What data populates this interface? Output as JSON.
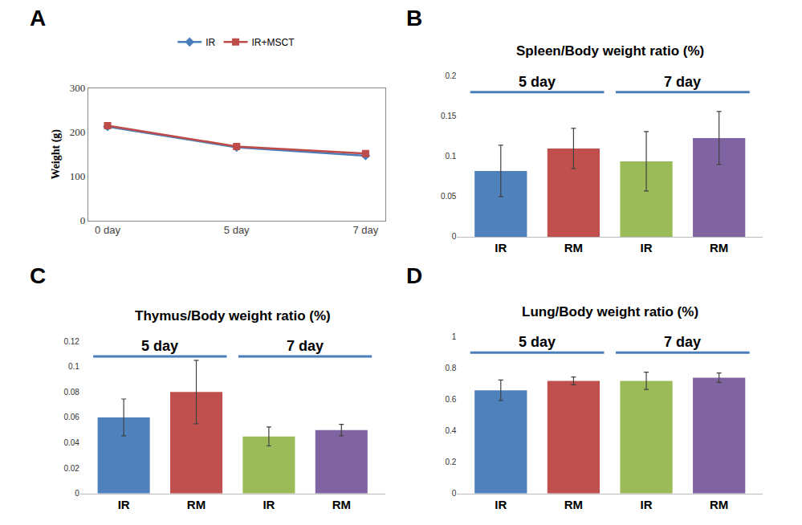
{
  "chart_data": [
    {
      "label": "A",
      "type": "line",
      "categories": [
        "0 day",
        "5 day",
        "7 day"
      ],
      "series": [
        {
          "name": "IR",
          "color": "#4a7ebb",
          "marker": "diamond",
          "values": [
            213,
            166,
            147
          ]
        },
        {
          "name": "IR+MSCT",
          "color": "#be4b48",
          "marker": "square",
          "values": [
            215,
            168,
            152
          ]
        }
      ],
      "y_label": "Weight (g)",
      "ylim": [
        0,
        300
      ],
      "yticks": [
        0,
        100,
        200,
        300
      ],
      "legend": "top",
      "grid": false
    },
    {
      "label": "B",
      "type": "bar",
      "title": "Spleen/Body weight ratio (%)",
      "categories": [
        "IR",
        "RM",
        "IR",
        "RM"
      ],
      "values": [
        0.082,
        0.11,
        0.094,
        0.123
      ],
      "errors": [
        0.032,
        0.025,
        0.037,
        0.033
      ],
      "colors": [
        "#4f81bd",
        "#c0504d",
        "#9bbb59",
        "#8064a2"
      ],
      "groups": [
        {
          "label": "5 day",
          "categories": [
            0,
            1
          ]
        },
        {
          "label": "7 day",
          "categories": [
            2,
            3
          ]
        }
      ],
      "ylim": [
        0,
        0.2
      ],
      "yticks": [
        0,
        0.05,
        0.1,
        0.15,
        0.2
      ],
      "grid": false
    },
    {
      "label": "C",
      "type": "bar",
      "title": "Thymus/Body weight ratio (%)",
      "categories": [
        "IR",
        "RM",
        "IR",
        "RM"
      ],
      "values": [
        0.06,
        0.08,
        0.045,
        0.05
      ],
      "errors": [
        0.0145,
        0.025,
        0.0075,
        0.0045
      ],
      "colors": [
        "#4f81bd",
        "#c0504d",
        "#9bbb59",
        "#8064a2"
      ],
      "groups": [
        {
          "label": "5 day",
          "categories": [
            0,
            1
          ]
        },
        {
          "label": "7 day",
          "categories": [
            2,
            3
          ]
        }
      ],
      "ylim": [
        0,
        0.12
      ],
      "yticks": [
        0,
        0.02,
        0.04,
        0.06,
        0.08,
        0.1,
        0.12
      ],
      "grid": false
    },
    {
      "label": "D",
      "type": "bar",
      "title": "Lung/Body weight ratio (%)",
      "categories": [
        "IR",
        "RM",
        "IR",
        "RM"
      ],
      "values": [
        0.66,
        0.72,
        0.72,
        0.74
      ],
      "errors": [
        0.065,
        0.025,
        0.055,
        0.03
      ],
      "colors": [
        "#4f81bd",
        "#c0504d",
        "#9bbb59",
        "#8064a2"
      ],
      "groups": [
        {
          "label": "5 day",
          "categories": [
            0,
            1
          ]
        },
        {
          "label": "7 day",
          "categories": [
            2,
            3
          ]
        }
      ],
      "ylim": [
        0,
        1
      ],
      "yticks": [
        0,
        0.2,
        0.4,
        0.6,
        0.8,
        1
      ],
      "grid": false
    }
  ]
}
